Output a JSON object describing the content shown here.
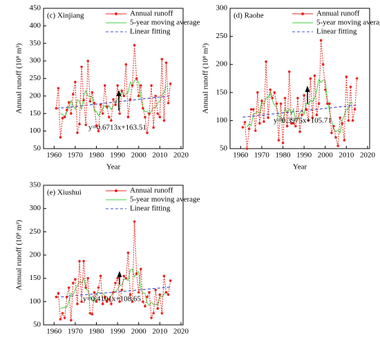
{
  "chart_data": [
    {
      "type": "line",
      "title": "(c) Xinjiang",
      "x_label": "Year",
      "y_label": "Annual runoff (10⁸ m³)",
      "x": [
        1961,
        1962,
        1963,
        1964,
        1965,
        1966,
        1967,
        1968,
        1969,
        1970,
        1971,
        1972,
        1973,
        1974,
        1975,
        1976,
        1977,
        1978,
        1979,
        1980,
        1981,
        1982,
        1983,
        1984,
        1985,
        1986,
        1987,
        1988,
        1989,
        1990,
        1991,
        1992,
        1993,
        1994,
        1995,
        1996,
        1997,
        1998,
        1999,
        2000,
        2001,
        2002,
        2003,
        2004,
        2005,
        2006,
        2007,
        2008,
        2009,
        2010,
        2011,
        2012,
        2013,
        2014,
        2015
      ],
      "series": [
        {
          "name": "Annual runoff",
          "color": "#e8241f",
          "marker": true,
          "values": [
            165,
            222,
            82,
            137,
            140,
            160,
            182,
            150,
            205,
            240,
            95,
            120,
            283,
            188,
            118,
            300,
            185,
            210,
            180,
            115,
            100,
            175,
            150,
            230,
            170,
            140,
            130,
            190,
            175,
            230,
            150,
            215,
            200,
            290,
            140,
            190,
            230,
            345,
            250,
            200,
            230,
            165,
            140,
            95,
            150,
            230,
            110,
            200,
            150,
            140,
            305,
            130,
            295,
            180,
            235
          ]
        },
        {
          "name": "5-year moving average",
          "color": "#3ed13e",
          "values": [
            null,
            null,
            149,
            148,
            140,
            154,
            167,
            187,
            174,
            162,
            189,
            185,
            161,
            202,
            215,
            200,
            199,
            198,
            158,
            156,
            144,
            154,
            165,
            173,
            164,
            172,
            161,
            173,
            175,
            192,
            194,
            217,
            199,
            207,
            210,
            239,
            231,
            243,
            251,
            238,
            197,
            166,
            156,
            156,
            145,
            157,
            168,
            166,
            181,
            185,
            204,
            210,
            229,
            null,
            null
          ]
        },
        {
          "name": "Linear fitting",
          "color": "#3b4fd8",
          "dash": true,
          "x": [
            1961,
            2015
          ],
          "values": [
            164.2,
            200.4
          ]
        }
      ],
      "annotation": "y=0.6713x+163.51",
      "xlim": [
        1955,
        2021
      ],
      "xticks": [
        1960,
        1970,
        1980,
        1990,
        2000,
        2010,
        2020
      ],
      "ylim": [
        50,
        450
      ],
      "yticks": [
        50,
        100,
        150,
        200,
        250,
        300,
        350,
        400,
        450
      ]
    },
    {
      "type": "line",
      "title": "(d) Raohe",
      "x_label": "Year",
      "y_label": "Annual runoff (10⁸ m³)",
      "x": [
        1961,
        1962,
        1963,
        1964,
        1965,
        1966,
        1967,
        1968,
        1969,
        1970,
        1971,
        1972,
        1973,
        1974,
        1975,
        1976,
        1977,
        1978,
        1979,
        1980,
        1981,
        1982,
        1983,
        1984,
        1985,
        1986,
        1987,
        1988,
        1989,
        1990,
        1991,
        1992,
        1993,
        1994,
        1995,
        1996,
        1997,
        1998,
        1999,
        2000,
        2001,
        2002,
        2003,
        2004,
        2005,
        2006,
        2007,
        2008,
        2009,
        2010,
        2011,
        2012,
        2013,
        2014,
        2015
      ],
      "series": [
        {
          "name": "Annual runoff",
          "color": "#e8241f",
          "marker": true,
          "values": [
            88,
            97,
            50,
            85,
            120,
            120,
            82,
            150,
            95,
            135,
            98,
            205,
            105,
            155,
            140,
            150,
            130,
            65,
            130,
            60,
            140,
            90,
            187,
            95,
            95,
            90,
            140,
            80,
            110,
            145,
            120,
            100,
            175,
            105,
            180,
            110,
            130,
            243,
            200,
            155,
            130,
            130,
            78,
            90,
            70,
            55,
            105,
            95,
            65,
            178,
            100,
            160,
            100,
            120,
            175
          ]
        },
        {
          "name": "5-year moving average",
          "color": "#3ed13e",
          "values": [
            null,
            null,
            88,
            94,
            91,
            111,
            113,
            116,
            112,
            137,
            128,
            140,
            141,
            151,
            136,
            128,
            123,
            107,
            105,
            97,
            121,
            114,
            121,
            111,
            121,
            100,
            103,
            113,
            119,
            111,
            130,
            129,
            136,
            134,
            140,
            154,
            173,
            168,
            172,
            172,
            139,
            117,
            100,
            85,
            80,
            83,
            78,
            100,
            109,
            120,
            121,
            132,
            131,
            null,
            null
          ]
        },
        {
          "name": "Linear fitting",
          "color": "#3b4fd8",
          "dash": true,
          "x": [
            1961,
            2015
          ],
          "values": [
            106.1,
            127.6
          ]
        }
      ],
      "annotation": "y=0.3975x+105.71",
      "xlim": [
        1955,
        2021
      ],
      "xticks": [
        1960,
        1970,
        1980,
        1990,
        2000,
        2010,
        2020
      ],
      "ylim": [
        50,
        300
      ],
      "yticks": [
        50,
        100,
        150,
        200,
        250,
        300
      ]
    },
    {
      "type": "line",
      "title": "(e) Xiushui",
      "x_label": "Year",
      "y_label": "Annual runoff (10⁸ m³)",
      "x": [
        1961,
        1962,
        1963,
        1964,
        1965,
        1966,
        1967,
        1968,
        1969,
        1970,
        1971,
        1972,
        1973,
        1974,
        1975,
        1976,
        1977,
        1978,
        1979,
        1980,
        1981,
        1982,
        1983,
        1984,
        1985,
        1986,
        1987,
        1988,
        1989,
        1990,
        1991,
        1992,
        1993,
        1994,
        1995,
        1996,
        1997,
        1998,
        1999,
        2000,
        2001,
        2002,
        2003,
        2004,
        2005,
        2006,
        2007,
        2008,
        2009,
        2010,
        2011,
        2012,
        2013,
        2014,
        2015
      ],
      "series": [
        {
          "name": "Annual runoff",
          "color": "#e8241f",
          "marker": true,
          "values": [
            110,
            118,
            62,
            75,
            65,
            110,
            130,
            60,
            140,
            148,
            95,
            187,
            100,
            187,
            130,
            150,
            75,
            73,
            120,
            100,
            130,
            155,
            95,
            110,
            100,
            105,
            95,
            120,
            140,
            150,
            100,
            125,
            155,
            150,
            205,
            115,
            100,
            272,
            160,
            120,
            170,
            100,
            90,
            110,
            120,
            65,
            75,
            125,
            85,
            115,
            75,
            155,
            120,
            115,
            145
          ]
        },
        {
          "name": "5-year moving average",
          "color": "#3ed13e",
          "values": [
            null,
            null,
            86,
            86,
            88,
            88,
            101,
            118,
            115,
            126,
            134,
            143,
            140,
            151,
            128,
            123,
            110,
            104,
            100,
            116,
            120,
            118,
            118,
            113,
            101,
            106,
            112,
            122,
            121,
            127,
            134,
            136,
            147,
            150,
            145,
            168,
            170,
            153,
            164,
            164,
            128,
            118,
            118,
            97,
            92,
            99,
            94,
            93,
            95,
            111,
            110,
            116,
            122,
            null,
            null
          ]
        },
        {
          "name": "Linear fitting",
          "color": "#3b4fd8",
          "dash": true,
          "x": [
            1961,
            2015
          ],
          "values": [
            109.1,
            131.2
          ]
        }
      ],
      "annotation": "y=0.4101x+108.65",
      "xlim": [
        1955,
        2021
      ],
      "xticks": [
        1960,
        1970,
        1980,
        1990,
        2000,
        2010,
        2020
      ],
      "ylim": [
        50,
        350
      ],
      "yticks": [
        50,
        100,
        150,
        200,
        250,
        300,
        350
      ]
    }
  ]
}
